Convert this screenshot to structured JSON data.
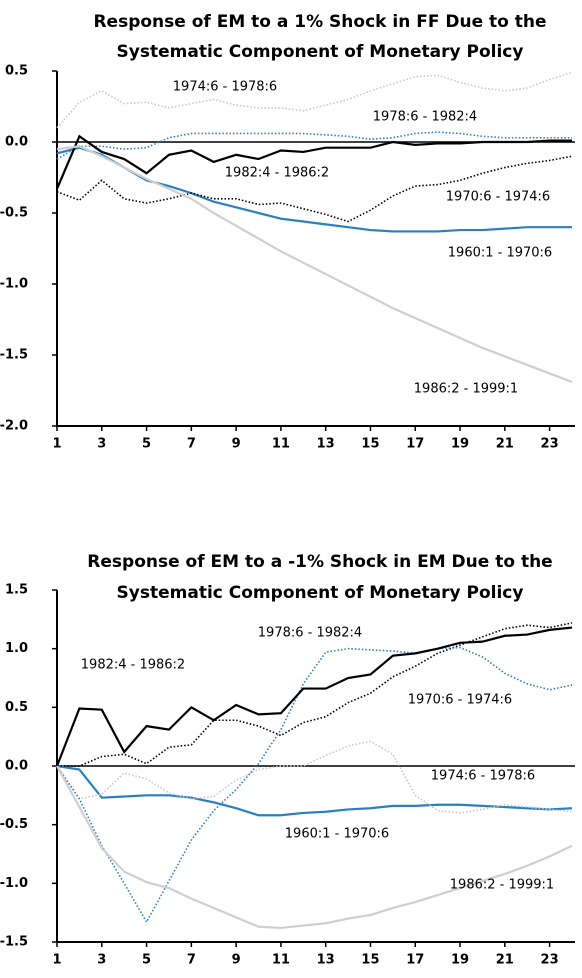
{
  "chart_data": [
    {
      "type": "line",
      "title": [
        "Response of EM to a 1% Shock in FF Due to the",
        "Systematic Component of Monetary Policy"
      ],
      "x": [
        1,
        2,
        3,
        4,
        5,
        6,
        7,
        8,
        9,
        10,
        11,
        12,
        13,
        14,
        15,
        16,
        17,
        18,
        19,
        20,
        21,
        22,
        23,
        24
      ],
      "xlim": [
        1,
        24
      ],
      "xticks": [
        1,
        3,
        5,
        7,
        9,
        11,
        13,
        15,
        17,
        19,
        21,
        23
      ],
      "ylim": [
        -2,
        0.5
      ],
      "yticks": [
        {
          "value": 0.5,
          "label": "0.5"
        },
        {
          "value": 0,
          "label": "0.0"
        },
        {
          "value": -0.5,
          "label": "-0.5"
        },
        {
          "value": -1,
          "label": "-1.0"
        },
        {
          "value": -1.5,
          "label": "-1.5"
        },
        {
          "value": -2,
          "label": "-2.0"
        }
      ],
      "series": [
        {
          "name": "1960:1 - 1970:6",
          "color": "#2a7fc1",
          "dash": "solid",
          "values": [
            -0.08,
            -0.04,
            -0.09,
            -0.18,
            -0.27,
            -0.31,
            -0.36,
            -0.42,
            -0.46,
            -0.5,
            -0.54,
            -0.56,
            -0.58,
            -0.6,
            -0.62,
            -0.63,
            -0.63,
            -0.63,
            -0.62,
            -0.62,
            -0.61,
            -0.6,
            -0.6,
            -0.6
          ]
        },
        {
          "name": "1970:6 - 1974:6",
          "color": "#000000",
          "dash": "dotted",
          "values": [
            -0.35,
            -0.41,
            -0.27,
            -0.4,
            -0.43,
            -0.4,
            -0.36,
            -0.4,
            -0.4,
            -0.44,
            -0.43,
            -0.47,
            -0.51,
            -0.56,
            -0.48,
            -0.38,
            -0.31,
            -0.3,
            -0.27,
            -0.22,
            -0.18,
            -0.15,
            -0.13,
            -0.1
          ]
        },
        {
          "name": "1974:6 - 1978:6",
          "color": "#c8c8c8",
          "dash": "dotted",
          "values": [
            0.1,
            0.28,
            0.36,
            0.27,
            0.28,
            0.24,
            0.27,
            0.3,
            0.26,
            0.24,
            0.24,
            0.22,
            0.26,
            0.3,
            0.36,
            0.41,
            0.46,
            0.47,
            0.42,
            0.38,
            0.36,
            0.38,
            0.44,
            0.49
          ]
        },
        {
          "name": "1978:6 - 1982:4",
          "color": "#2a7fc1",
          "dash": "dotted",
          "values": [
            -0.12,
            -0.03,
            -0.03,
            -0.05,
            -0.04,
            0.03,
            0.06,
            0.06,
            0.06,
            0.06,
            0.06,
            0.06,
            0.05,
            0.04,
            0.02,
            0.03,
            0.06,
            0.07,
            0.06,
            0.04,
            0.03,
            0.03,
            0.03,
            0.03
          ]
        },
        {
          "name": "1982:4 - 1986:2",
          "color": "#000000",
          "dash": "solid",
          "values": [
            -0.33,
            0.04,
            -0.07,
            -0.12,
            -0.22,
            -0.09,
            -0.06,
            -0.14,
            -0.09,
            -0.12,
            -0.06,
            -0.07,
            -0.04,
            -0.04,
            -0.04,
            0.0,
            -0.02,
            -0.01,
            -0.01,
            0.0,
            0.0,
            0.0,
            0.01,
            0.01
          ]
        },
        {
          "name": "1986:2 - 1999:1",
          "color": "#cfcfcf",
          "dash": "solid",
          "values": [
            -0.05,
            -0.03,
            -0.1,
            -0.18,
            -0.26,
            -0.33,
            -0.4,
            -0.5,
            -0.59,
            -0.68,
            -0.77,
            -0.85,
            -0.93,
            -1.01,
            -1.09,
            -1.17,
            -1.24,
            -1.31,
            -1.38,
            -1.45,
            -1.51,
            -1.57,
            -1.63,
            -1.69
          ]
        }
      ]
    },
    {
      "type": "line",
      "title": [
        "Response of EM to a -1% Shock in EM Due to the",
        "Systematic Component of Monetary Policy"
      ],
      "x": [
        1,
        2,
        3,
        4,
        5,
        6,
        7,
        8,
        9,
        10,
        11,
        12,
        13,
        14,
        15,
        16,
        17,
        18,
        19,
        20,
        21,
        22,
        23,
        24
      ],
      "xlim": [
        1,
        24
      ],
      "xticks": [
        1,
        3,
        5,
        7,
        9,
        11,
        13,
        15,
        17,
        19,
        21,
        23
      ],
      "ylim": [
        -1.5,
        1.5
      ],
      "yticks": [
        {
          "value": 1.5,
          "label": "1.5"
        },
        {
          "value": 1,
          "label": "1.0"
        },
        {
          "value": 0.5,
          "label": "0.5"
        },
        {
          "value": 0,
          "label": "0.0"
        },
        {
          "value": -0.5,
          "label": "-0.5"
        },
        {
          "value": -1,
          "label": "-1.0"
        },
        {
          "value": -1.5,
          "label": "-1.5"
        }
      ],
      "series": [
        {
          "name": "1960:1 - 1970:6",
          "color": "#2a7fc1",
          "dash": "solid",
          "values": [
            0,
            -0.03,
            -0.27,
            -0.26,
            -0.25,
            -0.25,
            -0.27,
            -0.31,
            -0.36,
            -0.42,
            -0.42,
            -0.4,
            -0.39,
            -0.37,
            -0.36,
            -0.34,
            -0.34,
            -0.33,
            -0.33,
            -0.34,
            -0.35,
            -0.36,
            -0.37,
            -0.36
          ]
        },
        {
          "name": "1970:6 - 1974:6",
          "color": "#000000",
          "dash": "dotted",
          "values": [
            0,
            0.0,
            0.08,
            0.1,
            0.02,
            0.16,
            0.18,
            0.39,
            0.39,
            0.34,
            0.26,
            0.37,
            0.42,
            0.54,
            0.62,
            0.76,
            0.85,
            0.96,
            1.03,
            1.1,
            1.17,
            1.2,
            1.18,
            1.22
          ]
        },
        {
          "name": "1974:6 - 1978:6",
          "color": "#c8c8c8",
          "dash": "dotted",
          "values": [
            0,
            -0.28,
            -0.24,
            -0.06,
            -0.11,
            -0.23,
            -0.28,
            -0.26,
            -0.12,
            -0.03,
            0.0,
            0.0,
            0.09,
            0.17,
            0.21,
            0.1,
            -0.25,
            -0.38,
            -0.4,
            -0.37,
            -0.33,
            -0.35,
            -0.37,
            -0.39
          ]
        },
        {
          "name": "1978:6 - 1982:4",
          "color": "#2a7fc1",
          "dash": "dotted",
          "values": [
            0,
            -0.28,
            -0.68,
            -1.0,
            -1.33,
            -0.98,
            -0.63,
            -0.38,
            -0.2,
            0.02,
            0.31,
            0.7,
            0.97,
            1.0,
            0.99,
            0.98,
            0.96,
            1.0,
            1.01,
            0.93,
            0.79,
            0.7,
            0.65,
            0.69
          ]
        },
        {
          "name": "1982:4 - 1986:2",
          "color": "#000000",
          "dash": "solid",
          "values": [
            0,
            0.49,
            0.48,
            0.12,
            0.34,
            0.31,
            0.5,
            0.39,
            0.52,
            0.44,
            0.45,
            0.66,
            0.66,
            0.75,
            0.78,
            0.94,
            0.96,
            1.0,
            1.05,
            1.06,
            1.11,
            1.12,
            1.16,
            1.18
          ]
        },
        {
          "name": "1986:2 - 1999:1",
          "color": "#cfcfcf",
          "dash": "solid",
          "values": [
            0,
            -0.35,
            -0.7,
            -0.9,
            -0.99,
            -1.04,
            -1.13,
            -1.21,
            -1.29,
            -1.37,
            -1.38,
            -1.36,
            -1.34,
            -1.3,
            -1.27,
            -1.21,
            -1.16,
            -1.1,
            -1.04,
            -0.98,
            -0.92,
            -0.85,
            -0.77,
            -0.68
          ]
        }
      ]
    }
  ]
}
